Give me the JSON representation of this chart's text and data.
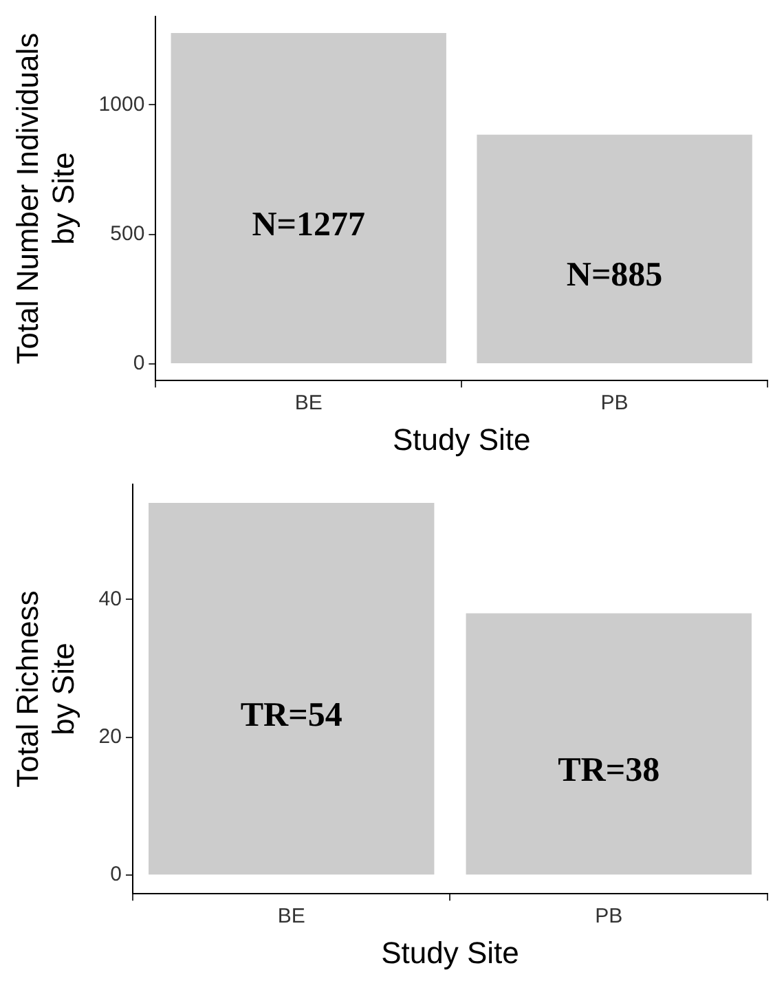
{
  "chart_data": [
    {
      "type": "bar",
      "xlabel": "Study Site",
      "ylabel": "Total Number Individuals\nby Site",
      "categories": [
        "BE",
        "PB"
      ],
      "values": [
        1277,
        885
      ],
      "color": "#cccccc",
      "value_labels": [
        "N=1277",
        "N=885"
      ],
      "ylim": [
        -64,
        1341
      ],
      "yticks": [
        0,
        500,
        1000
      ],
      "legend": false
    },
    {
      "type": "bar",
      "xlabel": "Study Site",
      "ylabel": "Total Richness\nby Site",
      "categories": [
        "BE",
        "PB"
      ],
      "values": [
        54,
        38
      ],
      "color": "#cccccc",
      "value_labels": [
        "TR=54",
        "TR=38"
      ],
      "ylim": [
        -2.7,
        56.7
      ],
      "yticks": [
        0,
        20,
        40
      ],
      "legend": false
    }
  ]
}
